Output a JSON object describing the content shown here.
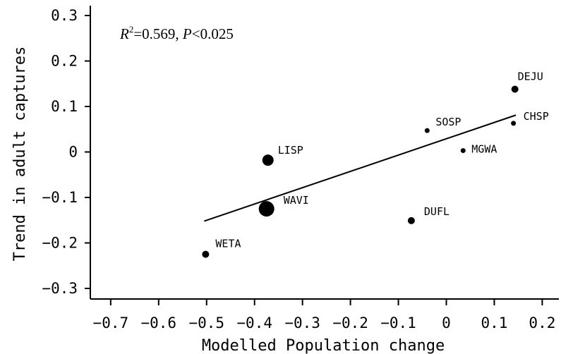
{
  "chart_data": {
    "type": "scatter",
    "xlabel": "Modelled Population change",
    "ylabel": "Trend in adult captures",
    "xlim": [
      -0.75,
      0.22
    ],
    "ylim": [
      -0.33,
      0.33
    ],
    "xticks": [
      -0.7,
      -0.6,
      -0.5,
      -0.4,
      -0.3,
      -0.2,
      -0.1,
      0,
      0.1,
      0.2
    ],
    "xtick_labels": [
      "−0.7",
      "−0.6",
      "−0.5",
      "−0.4",
      "−0.3",
      "−0.2",
      "−0.1",
      "0",
      "0.1",
      "0.2"
    ],
    "yticks": [
      0.3,
      0.2,
      0.1,
      0,
      -0.1,
      -0.2,
      -0.3
    ],
    "ytick_labels": [
      "0.3",
      "0.2",
      "0.1",
      "0",
      "−0.1",
      "−0.2",
      "−0.3"
    ],
    "annotation": {
      "r_symbol": "R",
      "r_exp": "2",
      "r_value": "=0.569, ",
      "p_symbol": "P",
      "p_value": "<0.025"
    },
    "points": [
      {
        "label": "DEJU",
        "x": 0.143,
        "y": 0.138,
        "size": 2
      },
      {
        "label": "CHSP",
        "x": 0.14,
        "y": 0.063,
        "size": 1
      },
      {
        "label": "SOSP",
        "x": -0.04,
        "y": 0.047,
        "size": 1
      },
      {
        "label": "MGWA",
        "x": 0.035,
        "y": 0.003,
        "size": 1
      },
      {
        "label": "LISP",
        "x": -0.372,
        "y": -0.018,
        "size": 4
      },
      {
        "label": "WAVI",
        "x": -0.375,
        "y": -0.125,
        "size": 6
      },
      {
        "label": "DUFL",
        "x": -0.073,
        "y": -0.151,
        "size": 2
      },
      {
        "label": "WETA",
        "x": -0.502,
        "y": -0.225,
        "size": 2
      }
    ],
    "regression": {
      "x": [
        -0.505,
        0.145
      ],
      "y": [
        -0.152,
        0.081
      ]
    },
    "grid": false,
    "legend": "none"
  }
}
